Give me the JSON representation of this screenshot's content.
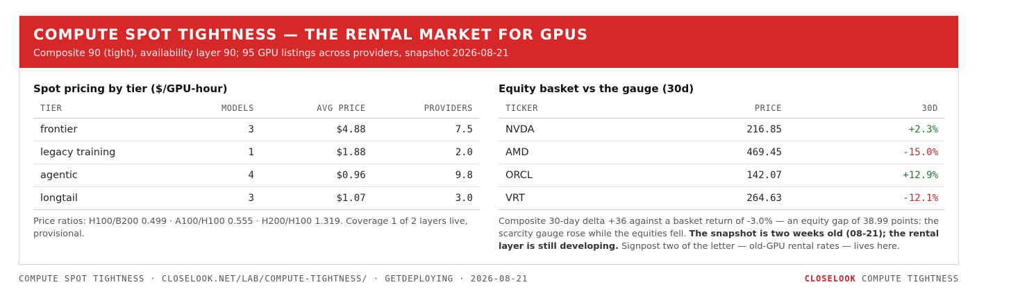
{
  "banner": {
    "title": "COMPUTE SPOT TIGHTNESS — THE RENTAL MARKET FOR GPUS",
    "subtitle": "Composite 90 (tight), availability layer 90; 95 GPU listings across providers, snapshot 2026-08-21"
  },
  "pricing": {
    "title": "Spot pricing by tier ($/GPU-hour)",
    "columns": [
      "TIER",
      "MODELS",
      "AVG PRICE",
      "PROVIDERS"
    ],
    "rows": [
      {
        "tier": "frontier",
        "models": "3",
        "avg_price": "$4.88",
        "providers": "7.5"
      },
      {
        "tier": "legacy training",
        "models": "1",
        "avg_price": "$1.88",
        "providers": "2.0"
      },
      {
        "tier": "agentic",
        "models": "4",
        "avg_price": "$0.96",
        "providers": "9.8"
      },
      {
        "tier": "longtail",
        "models": "3",
        "avg_price": "$1.07",
        "providers": "3.0"
      }
    ],
    "note": "Price ratios: H100/B200 0.499 · A100/H100 0.555 · H200/H100 1.319. Coverage 1 of 2 layers live, provisional."
  },
  "equity": {
    "title": "Equity basket vs the gauge (30d)",
    "columns": [
      "TICKER",
      "PRICE",
      "30D"
    ],
    "rows": [
      {
        "ticker": "NVDA",
        "price": "216.85",
        "change": "+2.3%",
        "dir": "pos"
      },
      {
        "ticker": "AMD",
        "price": "469.45",
        "change": "-15.0%",
        "dir": "neg"
      },
      {
        "ticker": "ORCL",
        "price": "142.07",
        "change": "+12.9%",
        "dir": "pos"
      },
      {
        "ticker": "VRT",
        "price": "264.63",
        "change": "-12.1%",
        "dir": "neg"
      }
    ],
    "note_part1": "Composite 30-day delta +36 against a basket return of -3.0% — an equity gap of 38.99 points: the scarcity gauge rose while the equities fell.",
    "note_bold": "The snapshot is two weeks old (08-21); the rental layer is still developing.",
    "note_part2": "Signpost two of the letter — old-GPU rental rates — lives here."
  },
  "footer": {
    "left": "COMPUTE SPOT TIGHTNESS · CLOSELOOK.NET/LAB/COMPUTE-TIGHTNESS/ · GETDEPLOYING · 2026-08-21",
    "brand": "CLOSELOOK",
    "brand_suffix": "COMPUTE TIGHTNESS"
  },
  "colors": {
    "banner": "#d62828",
    "positive": "#1f7a2e",
    "negative": "#c62828"
  }
}
